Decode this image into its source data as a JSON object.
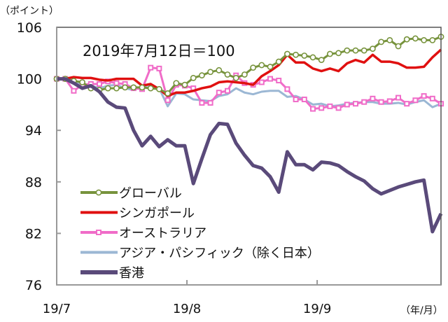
{
  "chart_data": {
    "type": "line",
    "y_unit_label": "（ポイント）",
    "x_unit_label": "（年/月）",
    "annotation": "2019年7月12日＝100",
    "ylim": [
      76,
      106
    ],
    "yticks": [
      106,
      100,
      94,
      88,
      82,
      76
    ],
    "xlim": [
      0,
      45
    ],
    "xticks": [
      {
        "label": "19/7",
        "x": 0
      },
      {
        "label": "19/8",
        "x": 15.25
      },
      {
        "label": "19/9",
        "x": 30.5
      }
    ],
    "grid": false,
    "legend_position": "bottom-left",
    "series": [
      {
        "name": "グローバル",
        "color": "#77933c",
        "marker": "circle",
        "values": [
          100,
          100,
          99.75,
          99.6,
          98.9,
          98.7,
          98.9,
          98.9,
          99.0,
          99.0,
          99.0,
          98.9,
          98.8,
          98.3,
          99.5,
          99.3,
          100.1,
          100.4,
          100.8,
          101.0,
          100.5,
          100.1,
          100.5,
          101.3,
          101.6,
          101.4,
          102.0,
          102.9,
          102.8,
          102.7,
          102.5,
          102.2,
          102.9,
          103.0,
          103.3,
          103.3,
          103.3,
          103.5,
          104.3,
          104.5,
          103.8,
          104.6,
          104.7,
          104.5,
          104.5,
          104.9
        ]
      },
      {
        "name": "シンガポール",
        "color": "#e01010",
        "marker": "none",
        "values": [
          100,
          100,
          100.2,
          100.1,
          100.1,
          99.9,
          99.8,
          100,
          100,
          100,
          99.2,
          99.4,
          98.8,
          98.0,
          98.4,
          98.4,
          98.6,
          98.9,
          99.1,
          99.6,
          99.7,
          99.6,
          99.5,
          99.3,
          100.3,
          100.9,
          101.6,
          102.8,
          101.9,
          101.9,
          101.2,
          100.9,
          101.2,
          100.9,
          101.8,
          102.2,
          101.9,
          102.8,
          102.0,
          102.0,
          101.8,
          101.3,
          101.3,
          101.4,
          102.5,
          103.4
        ]
      },
      {
        "name": "オーストラリア",
        "color": "#f06cc8",
        "marker": "square",
        "values": [
          100,
          100,
          98.6,
          99.3,
          99.4,
          99.4,
          99.7,
          99.5,
          99.4,
          98.9,
          98.8,
          101.3,
          101.2,
          97.5,
          99.3,
          99.2,
          98.9,
          97.2,
          97.2,
          98.4,
          98.6,
          100.4,
          99.5,
          99.3,
          99.6,
          100.0,
          99.8,
          98.8,
          97.6,
          97.6,
          96.5,
          96.6,
          96.8,
          96.6,
          97.0,
          97.1,
          97.3,
          97.7,
          97.3,
          97.4,
          97.8,
          97.1,
          97.5,
          98.0,
          97.7,
          97.1
        ]
      },
      {
        "name": "アジア・パシフィック（除く日本）",
        "color": "#9bb7d4",
        "marker": "none",
        "values": [
          100,
          100,
          99.5,
          99.4,
          99.2,
          98.9,
          99.2,
          99.3,
          98.9,
          98.7,
          99.1,
          99.3,
          98.9,
          96.8,
          98.3,
          98.2,
          97.6,
          97.5,
          97.4,
          98.0,
          98.2,
          98.9,
          98.4,
          98.2,
          98.5,
          98.6,
          98.6,
          97.9,
          98.0,
          97.6,
          97.0,
          97.1,
          96.8,
          96.9,
          97.1,
          97.2,
          97.3,
          97.3,
          97.1,
          97.1,
          97.2,
          97.0,
          97.3,
          97.5,
          96.7,
          97.1
        ]
      },
      {
        "name": "香港",
        "color": "#5a4a7a",
        "marker": "none",
        "values": [
          100,
          100,
          99.5,
          98.9,
          99.2,
          98.5,
          97.3,
          96.7,
          96.6,
          94.0,
          92.2,
          93.3,
          92.1,
          92.9,
          92.2,
          92.2,
          87.8,
          90.7,
          93.5,
          94.8,
          94.7,
          92.5,
          91.1,
          89.9,
          89.6,
          88.6,
          86.8,
          91.5,
          90.0,
          90.0,
          89.4,
          90.3,
          90.2,
          89.9,
          89.2,
          88.6,
          88.1,
          87.2,
          86.6,
          87.0,
          87.4,
          87.7,
          88.0,
          88.2,
          82.2,
          84.3
        ]
      }
    ]
  }
}
